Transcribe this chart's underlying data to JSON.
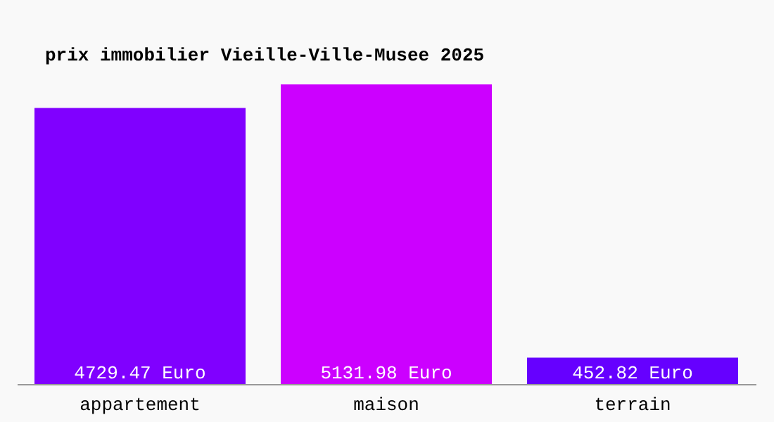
{
  "chart_data": {
    "type": "bar",
    "title": "prix immobilier Vieille-Ville-Musee 2025",
    "categories": [
      "appartement",
      "maison",
      "terrain"
    ],
    "values": [
      4729.47,
      5131.98,
      452.82
    ],
    "value_labels": [
      "4729.47 Euro",
      "5131.98 Euro",
      "452.82 Euro"
    ],
    "colors": [
      "#8000ff",
      "#cc00ff",
      "#6600ff"
    ]
  }
}
